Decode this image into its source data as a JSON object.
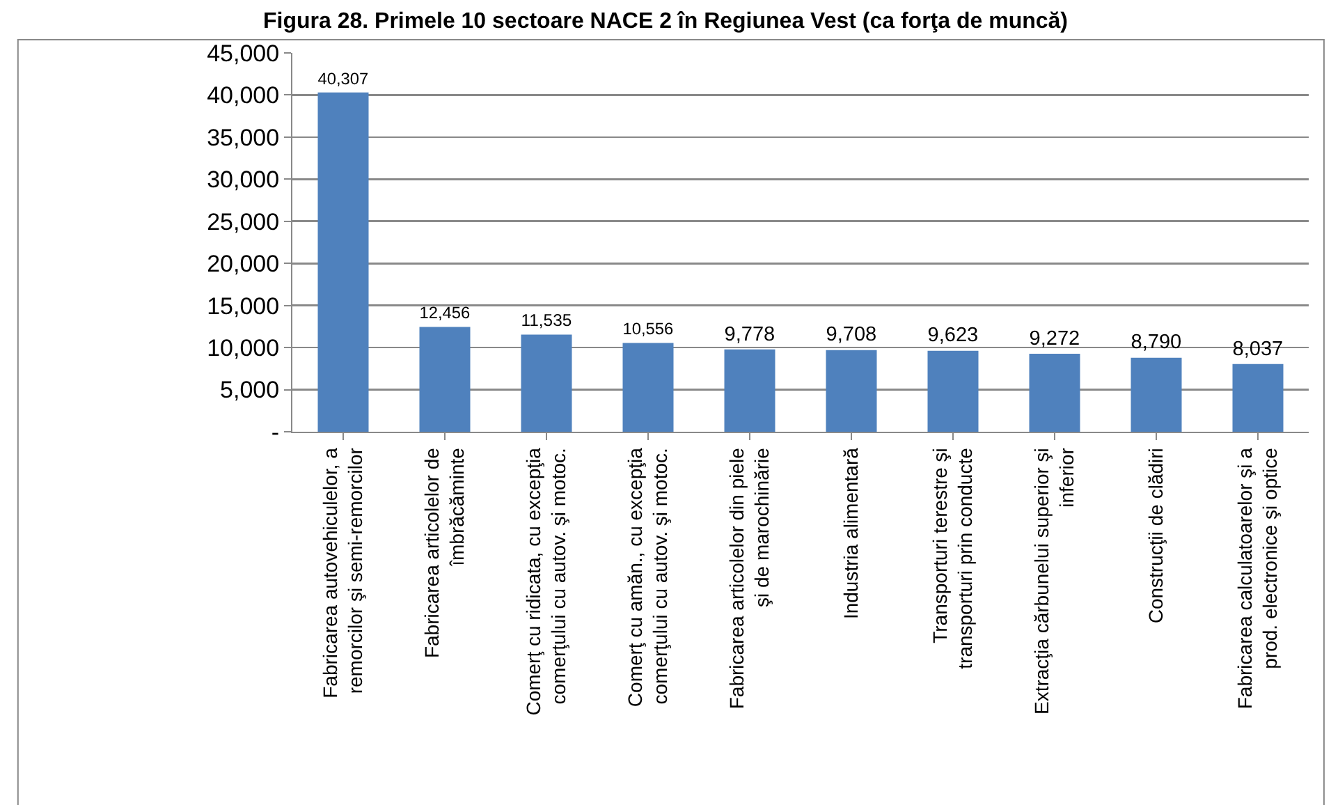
{
  "chart_data": {
    "type": "bar",
    "title": "Figura 28. Primele 10 sectoare NACE 2 în Regiunea Vest (ca forţa de muncă)",
    "categories": [
      "Fabricarea autovehiculelor, a remorcilor şi semi-remorcilor",
      "Fabricarea articolelor de îmbrăcăminte",
      "Comerţ cu ridicata, cu excepţia comerţului cu autov. şi motoc.",
      "Comerţ cu amăn., cu excepţia comerţului cu autov. şi motoc.",
      "Fabricarea articolelor din piele şi de marochinărie",
      "Industria alimentară",
      "Transporturi terestre şi transporturi prin conducte",
      "Extracţia cărbunelui superior şi inferior",
      "Construcţii de clădiri",
      "Fabricarea calculatoarelor şi a prod. electronice şi optice"
    ],
    "values": [
      40307,
      12456,
      11535,
      10556,
      9778,
      9708,
      9623,
      9272,
      8790,
      8037
    ],
    "color": "#4f81bd",
    "ylim": [
      0,
      45000
    ],
    "yticks": [
      {
        "value": 0,
        "label": "-"
      },
      {
        "value": 5000,
        "label": "5,000"
      },
      {
        "value": 10000,
        "label": "10,000"
      },
      {
        "value": 15000,
        "label": "15,000"
      },
      {
        "value": 20000,
        "label": "20,000"
      },
      {
        "value": 25000,
        "label": "25,000"
      },
      {
        "value": 30000,
        "label": "30,000"
      },
      {
        "value": 35000,
        "label": "35,000"
      },
      {
        "value": 40000,
        "label": "40,000"
      },
      {
        "value": 45000,
        "label": "45,000"
      }
    ],
    "value_labels": [
      "40,307",
      "12,456",
      "11,535",
      "10,556",
      "9,778",
      "9,708",
      "9,623",
      "9,272",
      "8,790",
      "8,037"
    ],
    "grid": "y"
  }
}
